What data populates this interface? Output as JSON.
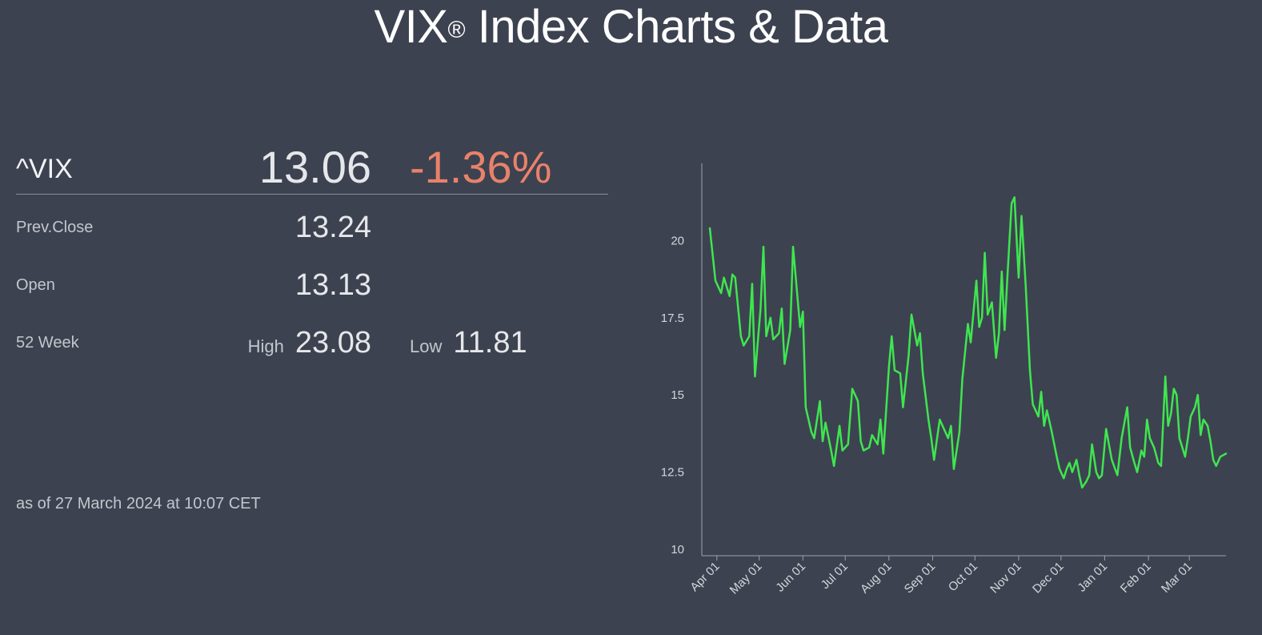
{
  "title": "VIX",
  "title_mark": "®",
  "title_rest": " Index Charts & Data",
  "quote": {
    "ticker": "^VIX",
    "price": "13.06",
    "change": "-1.36%",
    "prev_close_label": "Prev.Close",
    "prev_close": "13.24",
    "open_label": "Open",
    "open": "13.13",
    "week52_label": "52 Week",
    "high_label": "High",
    "high": "23.08",
    "low_label": "Low",
    "low": "11.81",
    "as_of": "as of 27 March 2024 at 10:07 CET"
  },
  "colors": {
    "background": "#3d4250",
    "line": "#3ee64f",
    "negative": "#e8826a",
    "axis": "#9da1aa"
  },
  "chart_data": {
    "type": "line",
    "title": "",
    "xlabel": "",
    "ylabel": "",
    "x_ticks": [
      "Apr 01",
      "May 01",
      "Jun 01",
      "Jul 01",
      "Aug 01",
      "Sep 01",
      "Oct 01",
      "Nov 01",
      "Dec 01",
      "Jan 01",
      "Feb 01",
      "Mar 01"
    ],
    "y_ticks": [
      10,
      12.5,
      15,
      17.5,
      20
    ],
    "ylim": [
      10,
      22.5
    ],
    "xlim": [
      "2023-03-27",
      "2024-03-27"
    ],
    "grid": false,
    "series": [
      {
        "points": [
          [
            "2023-03-27",
            20.4
          ],
          [
            "2023-03-31",
            18.7
          ],
          [
            "2023-04-04",
            18.3
          ],
          [
            "2023-04-06",
            18.8
          ],
          [
            "2023-04-10",
            18.2
          ],
          [
            "2023-04-12",
            18.9
          ],
          [
            "2023-04-14",
            18.8
          ],
          [
            "2023-04-18",
            16.9
          ],
          [
            "2023-04-20",
            16.6
          ],
          [
            "2023-04-24",
            16.9
          ],
          [
            "2023-04-26",
            18.6
          ],
          [
            "2023-04-28",
            15.6
          ],
          [
            "2023-05-02",
            17.8
          ],
          [
            "2023-05-04",
            19.8
          ],
          [
            "2023-05-06",
            16.9
          ],
          [
            "2023-05-09",
            17.5
          ],
          [
            "2023-05-11",
            16.8
          ],
          [
            "2023-05-15",
            17.0
          ],
          [
            "2023-05-17",
            17.8
          ],
          [
            "2023-05-19",
            16.0
          ],
          [
            "2023-05-23",
            17.1
          ],
          [
            "2023-05-25",
            19.8
          ],
          [
            "2023-05-30",
            17.2
          ],
          [
            "2023-06-01",
            17.7
          ],
          [
            "2023-06-03",
            14.6
          ],
          [
            "2023-06-07",
            13.8
          ],
          [
            "2023-06-09",
            13.6
          ],
          [
            "2023-06-13",
            14.8
          ],
          [
            "2023-06-15",
            13.5
          ],
          [
            "2023-06-17",
            14.1
          ],
          [
            "2023-06-21",
            13.2
          ],
          [
            "2023-06-23",
            12.7
          ],
          [
            "2023-06-27",
            14.0
          ],
          [
            "2023-06-29",
            13.2
          ],
          [
            "2023-07-03",
            13.4
          ],
          [
            "2023-07-06",
            15.2
          ],
          [
            "2023-07-10",
            14.8
          ],
          [
            "2023-07-12",
            13.5
          ],
          [
            "2023-07-14",
            13.2
          ],
          [
            "2023-07-18",
            13.3
          ],
          [
            "2023-07-20",
            13.7
          ],
          [
            "2023-07-24",
            13.4
          ],
          [
            "2023-07-26",
            14.2
          ],
          [
            "2023-07-28",
            13.1
          ],
          [
            "2023-08-01",
            15.9
          ],
          [
            "2023-08-03",
            16.9
          ],
          [
            "2023-08-05",
            15.8
          ],
          [
            "2023-08-09",
            15.7
          ],
          [
            "2023-08-11",
            14.6
          ],
          [
            "2023-08-15",
            16.3
          ],
          [
            "2023-08-17",
            17.6
          ],
          [
            "2023-08-21",
            16.6
          ],
          [
            "2023-08-23",
            17.0
          ],
          [
            "2023-08-25",
            15.7
          ],
          [
            "2023-08-29",
            14.2
          ],
          [
            "2023-08-31",
            13.6
          ],
          [
            "2023-09-02",
            12.9
          ],
          [
            "2023-09-06",
            14.2
          ],
          [
            "2023-09-08",
            14.0
          ],
          [
            "2023-09-12",
            13.6
          ],
          [
            "2023-09-14",
            14.0
          ],
          [
            "2023-09-16",
            12.6
          ],
          [
            "2023-09-20",
            13.8
          ],
          [
            "2023-09-22",
            15.5
          ],
          [
            "2023-09-26",
            17.3
          ],
          [
            "2023-09-28",
            16.7
          ],
          [
            "2023-10-02",
            18.7
          ],
          [
            "2023-10-04",
            17.2
          ],
          [
            "2023-10-06",
            17.5
          ],
          [
            "2023-10-08",
            19.6
          ],
          [
            "2023-10-10",
            17.6
          ],
          [
            "2023-10-13",
            18.0
          ],
          [
            "2023-10-16",
            16.2
          ],
          [
            "2023-10-18",
            17.0
          ],
          [
            "2023-10-20",
            19.0
          ],
          [
            "2023-10-22",
            17.1
          ],
          [
            "2023-10-24",
            18.8
          ],
          [
            "2023-10-27",
            21.2
          ],
          [
            "2023-10-29",
            21.4
          ],
          [
            "2023-11-01",
            18.8
          ],
          [
            "2023-11-03",
            20.8
          ],
          [
            "2023-11-06",
            18.5
          ],
          [
            "2023-11-09",
            15.8
          ],
          [
            "2023-11-11",
            14.7
          ],
          [
            "2023-11-15",
            14.3
          ],
          [
            "2023-11-17",
            15.1
          ],
          [
            "2023-11-19",
            14.0
          ],
          [
            "2023-11-21",
            14.5
          ],
          [
            "2023-11-24",
            13.9
          ],
          [
            "2023-11-28",
            13.0
          ],
          [
            "2023-11-30",
            12.6
          ],
          [
            "2023-12-03",
            12.3
          ],
          [
            "2023-12-05",
            12.6
          ],
          [
            "2023-12-07",
            12.8
          ],
          [
            "2023-12-09",
            12.5
          ],
          [
            "2023-12-12",
            12.9
          ],
          [
            "2023-12-14",
            12.4
          ],
          [
            "2023-12-16",
            12.0
          ],
          [
            "2023-12-19",
            12.2
          ],
          [
            "2023-12-21",
            12.4
          ],
          [
            "2023-12-23",
            13.4
          ],
          [
            "2023-12-26",
            12.5
          ],
          [
            "2023-12-28",
            12.3
          ],
          [
            "2023-12-30",
            12.4
          ],
          [
            "2024-01-02",
            13.9
          ],
          [
            "2024-01-04",
            13.4
          ],
          [
            "2024-01-06",
            12.9
          ],
          [
            "2024-01-10",
            12.4
          ],
          [
            "2024-01-13",
            13.6
          ],
          [
            "2024-01-17",
            14.6
          ],
          [
            "2024-01-19",
            13.3
          ],
          [
            "2024-01-22",
            12.8
          ],
          [
            "2024-01-24",
            12.5
          ],
          [
            "2024-01-27",
            13.2
          ],
          [
            "2024-01-29",
            13.0
          ],
          [
            "2024-01-31",
            14.2
          ],
          [
            "2024-02-02",
            13.6
          ],
          [
            "2024-02-05",
            13.3
          ],
          [
            "2024-02-08",
            12.8
          ],
          [
            "2024-02-10",
            12.7
          ],
          [
            "2024-02-13",
            15.6
          ],
          [
            "2024-02-15",
            14.0
          ],
          [
            "2024-02-17",
            14.4
          ],
          [
            "2024-02-19",
            15.2
          ],
          [
            "2024-02-21",
            15.0
          ],
          [
            "2024-02-23",
            13.6
          ],
          [
            "2024-02-25",
            13.3
          ],
          [
            "2024-02-27",
            13.0
          ],
          [
            "2024-02-29",
            13.6
          ],
          [
            "2024-03-02",
            14.3
          ],
          [
            "2024-03-05",
            14.6
          ],
          [
            "2024-03-07",
            15.0
          ],
          [
            "2024-03-09",
            13.7
          ],
          [
            "2024-03-11",
            14.2
          ],
          [
            "2024-03-14",
            14.0
          ],
          [
            "2024-03-16",
            13.5
          ],
          [
            "2024-03-18",
            12.9
          ],
          [
            "2024-03-20",
            12.7
          ],
          [
            "2024-03-23",
            13.0
          ],
          [
            "2024-03-27",
            13.1
          ]
        ]
      }
    ]
  }
}
